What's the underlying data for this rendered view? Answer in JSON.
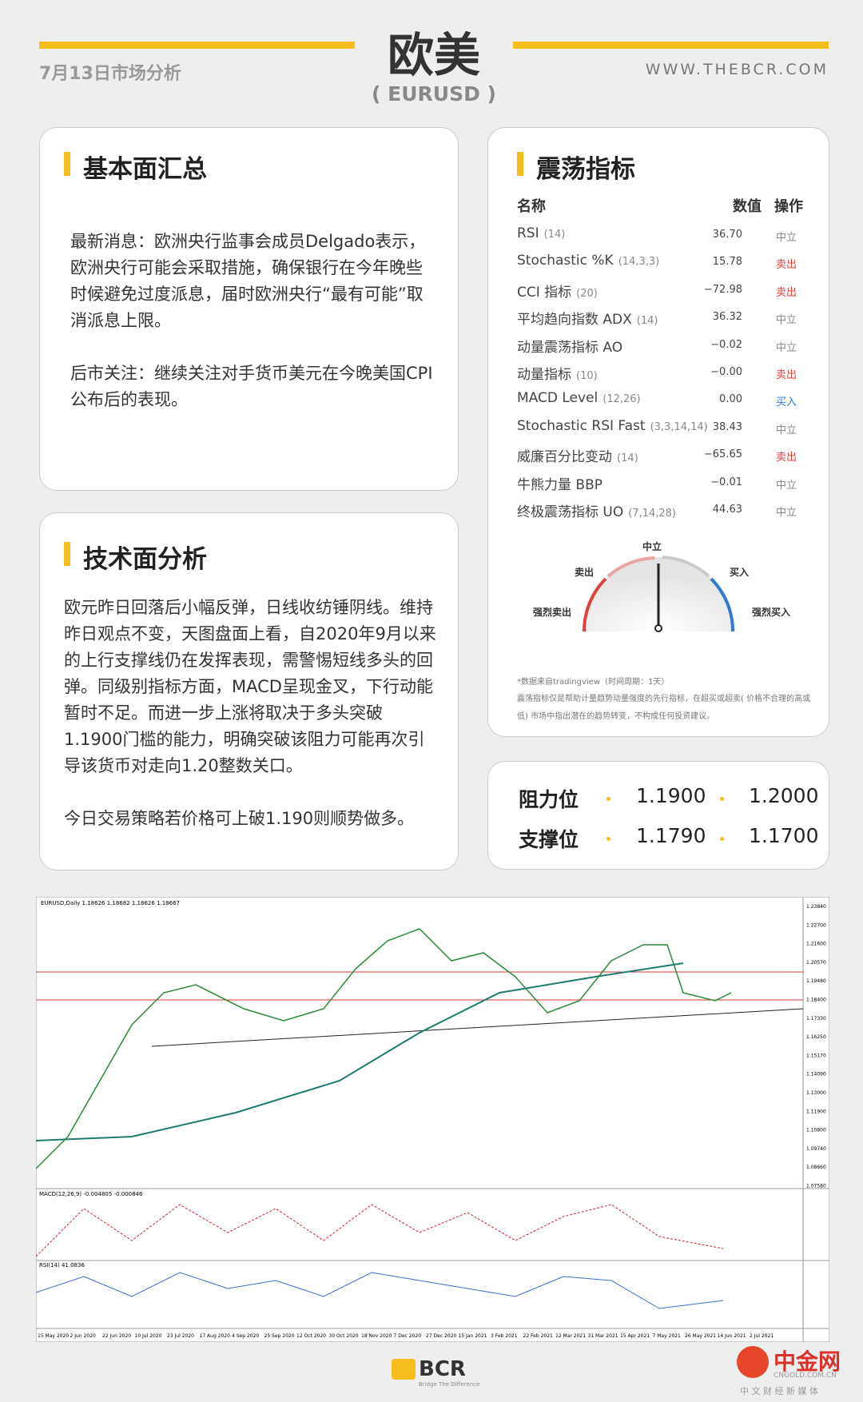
{
  "header": {
    "date": "7月13日市场分析",
    "title": "欧美",
    "subtitle": "( EURUSD )",
    "website": "WWW.THEBCR.COM"
  },
  "fundamentals": {
    "title": "基本面汇总",
    "paragraphs": [
      "最新消息：欧洲央行监事会成员Delgado表示，欧洲央行可能会采取措施，确保银行在今年晚些时候避免过度派息，届时欧洲央行“最有可能”取消派息上限。",
      "后市关注：继续关注对手货币美元在今晚美国CPI公布后的表现。"
    ]
  },
  "technical": {
    "title": "技术面分析",
    "paragraphs": [
      "欧元昨日回落后小幅反弹，日线收纺锤阴线。维持昨日观点不变，天图盘面上看，自2020年9月以来的上行支撑线仍在发挥表现，需警惕短线多头的回弹。同级别指标方面，MACD呈现金叉，下行动能暂时不足。而进一步上涨将取决于多头突破 1.1900门槛的能力，明确突破该阻力可能再次引导该货币对走向1.20整数关口。",
      "今日交易策略若价格可上破1.190则顺势做多。"
    ]
  },
  "oscillators": {
    "title": "震荡指标",
    "headers": [
      "名称",
      "数值",
      "操作"
    ],
    "rows": [
      {
        "name": "RSI",
        "params": "(14)",
        "value": "36.70",
        "action": "中立",
        "color": "#888888"
      },
      {
        "name": "Stochastic %K",
        "params": "(14,3,3)",
        "value": "15.78",
        "action": "卖出",
        "color": "#e0413a"
      },
      {
        "name": "CCI 指标",
        "params": "(20)",
        "value": "−72.98",
        "action": "卖出",
        "color": "#e0413a"
      },
      {
        "name": "平均趋向指数 ADX",
        "params": "(14)",
        "value": "36.32",
        "action": "中立",
        "color": "#888888"
      },
      {
        "name": "动量震荡指标 AO",
        "params": null,
        "value": "−0.02",
        "action": "中立",
        "color": "#888888"
      },
      {
        "name": "动量指标",
        "params": "(10)",
        "value": "−0.00",
        "action": "卖出",
        "color": "#e0413a"
      },
      {
        "name": "MACD Level",
        "params": "(12,26)",
        "value": "0.00",
        "action": "买入",
        "color": "#2f7ad1"
      },
      {
        "name": "Stochastic RSI Fast",
        "params": "(3,3,14,14)",
        "value": "38.43",
        "action": "中立",
        "color": "#888888"
      },
      {
        "name": "威廉百分比变动",
        "params": "(14)",
        "value": "−65.65",
        "action": "卖出",
        "color": "#e0413a"
      },
      {
        "name": "牛熊力量 BBP",
        "params": null,
        "value": "−0.01",
        "action": "中立",
        "color": "#888888"
      },
      {
        "name": "终极震荡指标 UO",
        "params": "(7,14,28)",
        "value": "44.63",
        "action": "中立",
        "color": "#888888"
      }
    ],
    "gauge": {
      "neutral": "中立",
      "sell": "卖出",
      "buy": "买入",
      "strong_sell": "强烈卖出",
      "strong_buy": "强烈买入"
    },
    "notes": [
      "*数据来自tradingview（时间周期：1天）",
      "震荡指标仅是帮助计量趋势动量强度的先行指标，在超买或超卖( 价格不合理的高或低) 市场中指出潜在的趋势转变，不构成任何投资建议。"
    ]
  },
  "levels": {
    "resistance": {
      "label": "阻力位",
      "values": [
        "1.1900",
        "1.2000"
      ]
    },
    "support": {
      "label": "支撑位",
      "values": [
        "1.1790",
        "1.1700"
      ]
    }
  },
  "price_chart": {
    "header": "EURUSD,Daily  1.18626 1.18682 1.18626 1.18667",
    "macd_label": "MACD(12,26,9) -0.004805 -0.000846",
    "rsi_label": "RSI(14) 41.0836",
    "dates": [
      "15 May 2020",
      "2 Jun 2020",
      "22 Jun 2020",
      "10 Jul 2020",
      "23 Jul 2020",
      "17 Aug 2020",
      "4 Sep 2020",
      "25 Sep 2020",
      "12 Oct 2020",
      "30 Oct 2020",
      "18 Nov 2020",
      "7 Dec 2020",
      "27 Dec 2020",
      "15 Jan 2021",
      "3 Feb 2021",
      "22 Feb 2021",
      "12 Mar 2021",
      "31 Mar 2021",
      "15 Apr 2021",
      "7 May 2021",
      "26 May 2021",
      "14 Jun 2021",
      "2 Jul 2021"
    ],
    "price_labels": [
      "1.23840",
      "1.22700",
      "1.21600",
      "1.20570",
      "1.19480",
      "1.18400",
      "1.17330",
      "1.16250",
      "1.15170",
      "1.14090",
      "1.13000",
      "1.11900",
      "1.10800",
      "1.09740",
      "1.08660",
      "1.07580"
    ]
  },
  "footer": {
    "brand": "BCR",
    "slogan": "Bridge The Difference",
    "watermark": "中金网",
    "watermark_site": "CNGOLD.COM.CN",
    "watermark_tag": "中 文 财 经 新 媒 体"
  }
}
